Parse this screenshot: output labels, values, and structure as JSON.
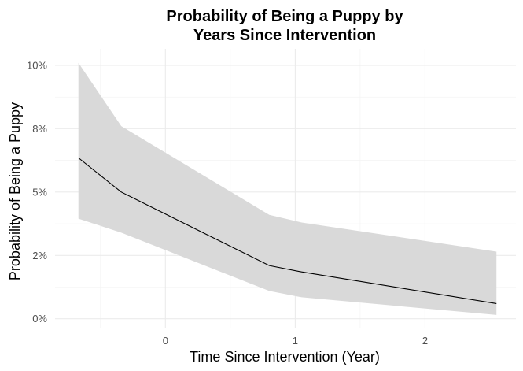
{
  "chart_data": {
    "type": "line",
    "title_lines": [
      "Probability of Being a Puppy by",
      "Years Since Intervention"
    ],
    "xlabel": "Time Since Intervention (Year)",
    "ylabel": "Probability of Being a Puppy",
    "xlim": [
      -0.85,
      2.7
    ],
    "ylim": [
      -0.0035,
      0.1065
    ],
    "x_ticks": [
      0,
      1,
      2
    ],
    "x_tick_labels": [
      "0",
      "1",
      "2"
    ],
    "y_ticks": [
      0,
      0.025,
      0.05,
      0.075,
      0.1
    ],
    "y_tick_labels": [
      "0%",
      "2%",
      "5%",
      "8%",
      "10%"
    ],
    "grid": true,
    "band_color": "#d9d9d9",
    "line_color": "#000000",
    "series": [
      {
        "x": [
          -0.67,
          -0.34,
          0.8,
          1.05,
          2.55
        ],
        "y": [
          0.0635,
          0.05,
          0.021,
          0.0185,
          0.006
        ],
        "lower": [
          0.0395,
          0.034,
          0.011,
          0.0085,
          0.0015
        ],
        "upper": [
          0.101,
          0.076,
          0.041,
          0.038,
          0.0265
        ]
      }
    ]
  }
}
